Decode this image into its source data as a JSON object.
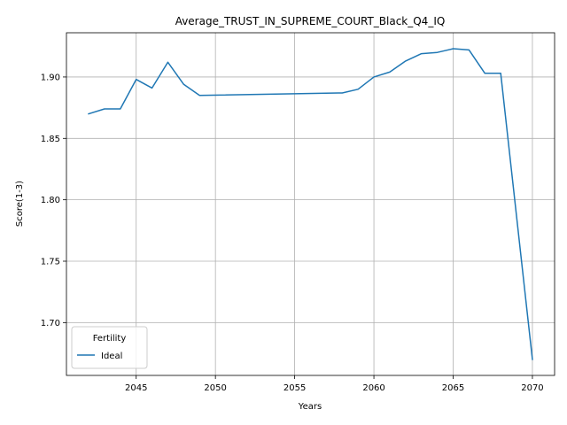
{
  "chart_data": {
    "type": "line",
    "title": "Average_TRUST_IN_SUPREME_COURT_Black_Q4_IQ",
    "xlabel": "Years",
    "ylabel": "Score(1-3)",
    "xlim": [
      2040.6,
      2071.4
    ],
    "ylim": [
      1.657,
      1.936
    ],
    "x_ticks": [
      2045,
      2050,
      2055,
      2060,
      2065,
      2070
    ],
    "y_ticks": [
      1.7,
      1.75,
      1.8,
      1.85,
      1.9
    ],
    "x_tick_labels": [
      "2045",
      "2050",
      "2055",
      "2060",
      "2065",
      "2070"
    ],
    "y_tick_labels": [
      "1.70",
      "1.75",
      "1.80",
      "1.85",
      "1.90"
    ],
    "grid": true,
    "legend": {
      "title": "Fertility",
      "placement": "lower-left"
    },
    "series": [
      {
        "name": "Ideal",
        "color": "#1f77b4",
        "x": [
          2042,
          2043,
          2044,
          2045,
          2046,
          2047,
          2048,
          2049,
          2058,
          2059,
          2060,
          2061,
          2062,
          2063,
          2064,
          2065,
          2066,
          2067,
          2068,
          2070
        ],
        "y": [
          1.87,
          1.874,
          1.874,
          1.898,
          1.891,
          1.912,
          1.894,
          1.885,
          1.887,
          1.89,
          1.9,
          1.904,
          1.913,
          1.919,
          1.92,
          1.923,
          1.922,
          1.903,
          1.903,
          1.67
        ]
      }
    ]
  }
}
